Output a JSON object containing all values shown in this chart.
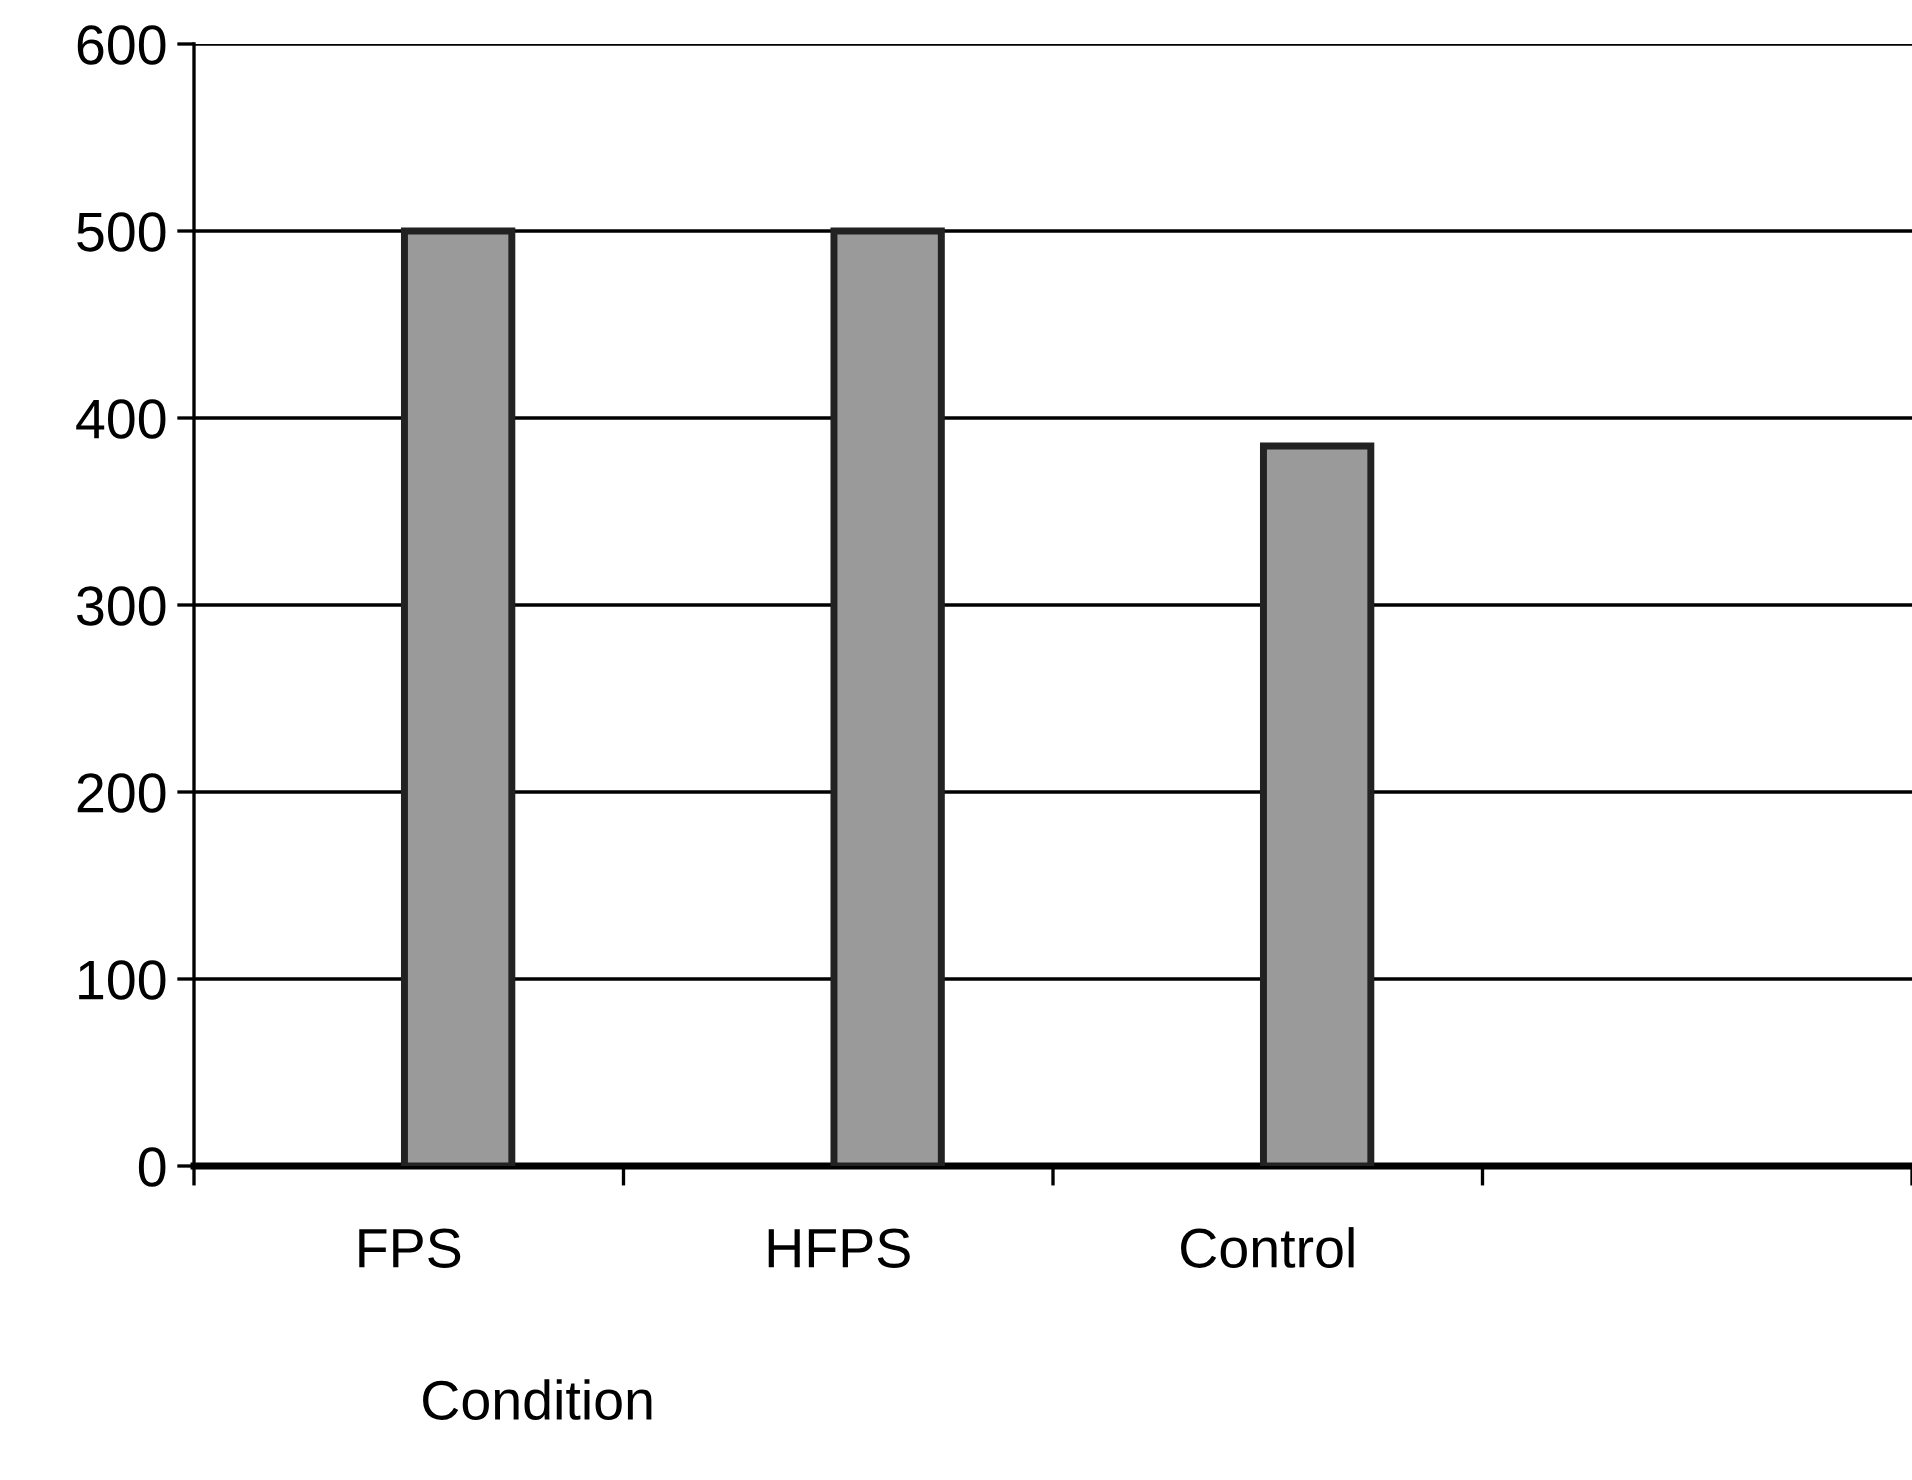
{
  "chart_data": {
    "type": "bar",
    "xlabel": "Condition",
    "categories": [
      "FPS",
      "HFPS",
      "Control",
      null
    ],
    "series": [
      {
        "color": "#9a9a9a",
        "values": [
          500,
          500,
          385,
          null
        ]
      }
    ],
    "ylim": [
      0,
      600
    ],
    "yticks": [
      0,
      100,
      200,
      300,
      400,
      500,
      600
    ],
    "grid": "y",
    "legend": false
  }
}
